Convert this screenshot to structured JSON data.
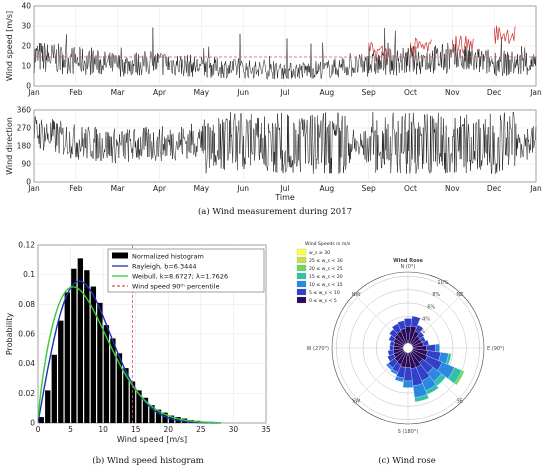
{
  "chart_data": [
    {
      "type": "line",
      "ylabel": "Wind speed [m/s]",
      "xlabel": "",
      "x": [
        "Jan",
        "Feb",
        "Mar",
        "Apr",
        "May",
        "Jun",
        "Jul",
        "Aug",
        "Sep",
        "Oct",
        "Nov",
        "Dec",
        "Jan"
      ],
      "yticks": [
        0,
        10,
        20,
        30,
        40
      ],
      "ylim": [
        0,
        40
      ],
      "reference_line": 14.5,
      "series": [
        {
          "values": [
            14,
            12,
            10,
            11,
            9,
            8,
            7,
            8,
            10,
            12,
            13,
            11,
            10
          ],
          "color": "#000000"
        },
        {
          "values": [
            null,
            null,
            null,
            null,
            null,
            null,
            null,
            null,
            17,
            19,
            21,
            26,
            null
          ],
          "color": "#cc3333"
        }
      ]
    },
    {
      "type": "line",
      "ylabel": "Wind direction",
      "xlabel": "Time",
      "x": [
        "Jan",
        "Feb",
        "Mar",
        "Apr",
        "May",
        "Jun",
        "Jul",
        "Aug",
        "Sep",
        "Oct",
        "Nov",
        "Dec",
        "Jan"
      ],
      "yticks": [
        0,
        90,
        180,
        270,
        360
      ],
      "ylim": [
        0,
        360
      ],
      "series": [
        {
          "values": [
            250,
            200,
            180,
            190,
            210,
            180,
            180,
            200,
            170,
            180,
            200,
            210,
            200
          ],
          "color": "#000000"
        }
      ]
    },
    {
      "type": "bar",
      "xlabel": "Wind speed [m/s]",
      "ylabel": "Probability",
      "xticks": [
        0,
        5,
        10,
        15,
        20,
        25,
        30,
        35
      ],
      "yticks": [
        0,
        0.02,
        0.04,
        0.06,
        0.08,
        0.1,
        0.12
      ],
      "ylim": [
        0,
        0.12
      ],
      "xlim": [
        0,
        35
      ],
      "bins": [
        0.5,
        1.5,
        2.5,
        3.5,
        4.5,
        5.5,
        6.5,
        7.5,
        8.5,
        9.5,
        10.5,
        11.5,
        12.5,
        13.5,
        14.5,
        15.5,
        16.5,
        17.5,
        18.5,
        19.5,
        20.5,
        21.5,
        22.5,
        23.5,
        24.5,
        25.5,
        26.5,
        27.5
      ],
      "values": [
        0.004,
        0.022,
        0.046,
        0.069,
        0.088,
        0.104,
        0.111,
        0.103,
        0.092,
        0.081,
        0.066,
        0.057,
        0.047,
        0.037,
        0.028,
        0.022,
        0.017,
        0.012,
        0.009,
        0.007,
        0.005,
        0.004,
        0.003,
        0.002,
        0.0015,
        0.001,
        0.0008,
        0.0005
      ],
      "percentile_90": 14.5,
      "rayleigh_b": 6.3444,
      "weibull_k": 8.6727,
      "weibull_lambda": 1.7626,
      "legend": [
        "Normalized histogram",
        "Rayleigh, b=6.3444",
        "Weibull, k=8.6727;    λ=1.7626",
        "Wind speed 90ᵗʰ percentile"
      ],
      "legend_placement": "top-right",
      "colors": {
        "hist": "#000000",
        "rayleigh": "#1f2fb4",
        "weibull": "#33cc33",
        "percentile": "#dd5555"
      }
    },
    {
      "type": "rose",
      "title": "Wind Rose",
      "legend_title": "Wind Speeds in m/s",
      "legend": [
        "w_s ≥ 30",
        "25 ≤ w_s < 30",
        "20 ≤ w_s < 25",
        "15 ≤ w_s < 20",
        "10 ≤ w_s < 15",
        "5 ≤ w_s < 10",
        "0 ≤ w_s < 5"
      ],
      "legend_colors": [
        "#ffff44",
        "#c8e04a",
        "#6fd860",
        "#32c0a8",
        "#2b88e0",
        "#3040c8",
        "#2a0a5a"
      ],
      "direction_labels": [
        "N (0°)",
        "NE",
        "E (90°)",
        "SE",
        "S (180°)",
        "SW",
        "W (270°)",
        "NW"
      ],
      "radial_labels": [
        "2%",
        "4%",
        "6%",
        "8%",
        "10%"
      ],
      "sectors": [
        {
          "dir": 0,
          "pct": [
            2.5,
            1.2
          ]
        },
        {
          "dir": 15,
          "pct": [
            2.6,
            1.5
          ]
        },
        {
          "dir": 30,
          "pct": [
            2.0,
            1.0
          ]
        },
        {
          "dir": 45,
          "pct": [
            1.5,
            0.8
          ]
        },
        {
          "dir": 60,
          "pct": [
            1.5,
            0.6
          ]
        },
        {
          "dir": 75,
          "pct": [
            1.6,
            0.8
          ]
        },
        {
          "dir": 90,
          "pct": [
            2.0,
            1.4,
            0.6
          ]
        },
        {
          "dir": 105,
          "pct": [
            2.2,
            2.0,
            1.2,
            0.4
          ]
        },
        {
          "dir": 120,
          "pct": [
            2.4,
            2.4,
            2.0,
            1.2,
            0.4
          ]
        },
        {
          "dir": 135,
          "pct": [
            2.0,
            2.0,
            1.6,
            0.8
          ]
        },
        {
          "dir": 150,
          "pct": [
            2.4,
            2.2,
            1.6,
            0.6
          ]
        },
        {
          "dir": 165,
          "pct": [
            2.4,
            2.6,
            1.8,
            0.6
          ]
        },
        {
          "dir": 180,
          "pct": [
            2.2,
            2.0,
            1.0
          ]
        },
        {
          "dir": 195,
          "pct": [
            2.2,
            1.6,
            0.6
          ]
        },
        {
          "dir": 210,
          "pct": [
            2.0,
            1.2,
            0.4
          ]
        },
        {
          "dir": 225,
          "pct": [
            1.8,
            1.2,
            0.4
          ]
        },
        {
          "dir": 240,
          "pct": [
            1.6,
            1.0
          ]
        },
        {
          "dir": 255,
          "pct": [
            1.5,
            0.8
          ]
        },
        {
          "dir": 270,
          "pct": [
            1.4,
            0.6
          ]
        },
        {
          "dir": 285,
          "pct": [
            1.4,
            0.6
          ]
        },
        {
          "dir": 300,
          "pct": [
            1.6,
            0.8
          ]
        },
        {
          "dir": 315,
          "pct": [
            1.8,
            1.0
          ]
        },
        {
          "dir": 330,
          "pct": [
            2.0,
            1.2
          ]
        },
        {
          "dir": 345,
          "pct": [
            2.2,
            1.2
          ]
        }
      ]
    }
  ],
  "captions": {
    "a": "(a) Wind measurement during 2017",
    "b": "(b) Wind speed histogram",
    "c": "(c) Wind rose"
  }
}
